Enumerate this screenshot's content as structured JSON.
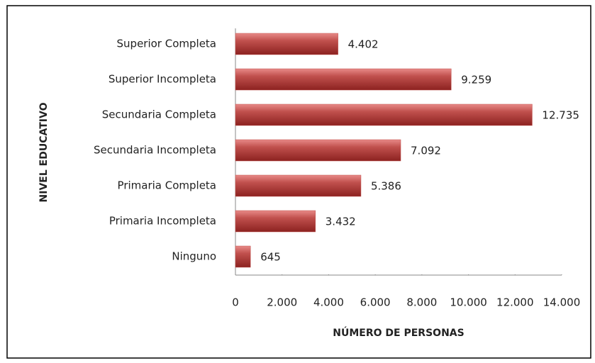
{
  "chart_data": {
    "type": "hbar",
    "xlabel": "NÚMERO DE PERSONAS",
    "ylabel": "NIVEL EDUCATIVO",
    "categories": [
      "Superior Completa",
      "Superior Incompleta",
      "Secundaria Completa",
      "Secundaria Incompleta",
      "Primaria Completa",
      "Primaria Incompleta",
      "Ninguno"
    ],
    "values": [
      4402,
      9259,
      12735,
      7092,
      5386,
      3432,
      645
    ],
    "value_labels": [
      "4.402",
      "9.259",
      "12.735",
      "7.092",
      "5.386",
      "3.432",
      "645"
    ],
    "color": "#c0504d",
    "xlim": [
      0,
      14000
    ],
    "xticks": [
      0,
      {
        "value": 2000,
        "label": "2.000"
      },
      {
        "value": 4000,
        "label": "4.000"
      },
      {
        "value": 6000,
        "label": "6.000"
      },
      {
        "value": 8000,
        "label": "8.000"
      },
      {
        "value": 10000,
        "label": "10.000"
      },
      {
        "value": 12000,
        "label": "12.000"
      },
      {
        "value": 14000,
        "label": "14.000"
      }
    ],
    "grid": false
  }
}
